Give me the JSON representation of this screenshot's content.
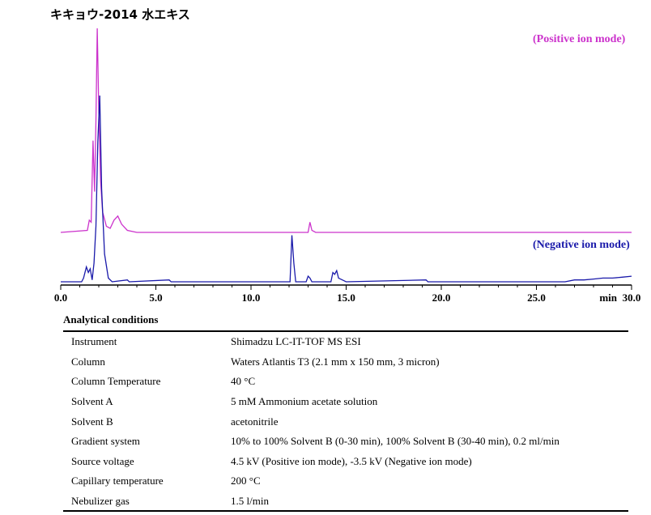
{
  "title": "キキョウ-2014 水エキス",
  "chart_data": {
    "type": "line",
    "x_range": [
      0.0,
      30.0
    ],
    "x_ticks": [
      "0.0",
      "5.0",
      "10.0",
      "15.0",
      "20.0",
      "25.0",
      "30.0"
    ],
    "x_unit_label": "min",
    "series": [
      {
        "name": "(Positive ion mode)",
        "color": "#cc33cc",
        "points": [
          [
            0.0,
            0.0
          ],
          [
            1.4,
            0.01
          ],
          [
            1.5,
            0.06
          ],
          [
            1.6,
            0.05
          ],
          [
            1.7,
            0.45
          ],
          [
            1.78,
            0.2
          ],
          [
            1.85,
            0.55
          ],
          [
            1.92,
            1.0
          ],
          [
            2.0,
            0.6
          ],
          [
            2.1,
            0.25
          ],
          [
            2.2,
            0.1
          ],
          [
            2.4,
            0.03
          ],
          [
            2.6,
            0.02
          ],
          [
            2.8,
            0.06
          ],
          [
            3.0,
            0.08
          ],
          [
            3.2,
            0.04
          ],
          [
            3.5,
            0.01
          ],
          [
            4.0,
            0.0
          ],
          [
            13.0,
            0.0
          ],
          [
            13.1,
            0.05
          ],
          [
            13.2,
            0.01
          ],
          [
            13.4,
            0.0
          ],
          [
            30.0,
            0.0
          ]
        ]
      },
      {
        "name": "(Negative ion mode)",
        "color": "#1a1aaa",
        "points": [
          [
            0.0,
            0.0
          ],
          [
            1.1,
            0.0
          ],
          [
            1.2,
            0.02
          ],
          [
            1.35,
            0.08
          ],
          [
            1.45,
            0.05
          ],
          [
            1.55,
            0.07
          ],
          [
            1.65,
            0.01
          ],
          [
            1.75,
            0.1
          ],
          [
            1.85,
            0.3
          ],
          [
            1.95,
            0.75
          ],
          [
            2.05,
            1.0
          ],
          [
            2.15,
            0.5
          ],
          [
            2.3,
            0.15
          ],
          [
            2.5,
            0.02
          ],
          [
            2.7,
            0.0
          ],
          [
            3.5,
            0.01
          ],
          [
            3.6,
            0.0
          ],
          [
            5.7,
            0.01
          ],
          [
            5.8,
            0.0
          ],
          [
            12.05,
            0.0
          ],
          [
            12.15,
            0.25
          ],
          [
            12.25,
            0.1
          ],
          [
            12.35,
            0.0
          ],
          [
            12.9,
            0.0
          ],
          [
            13.0,
            0.03
          ],
          [
            13.1,
            0.02
          ],
          [
            13.2,
            0.0
          ],
          [
            14.2,
            0.0
          ],
          [
            14.3,
            0.05
          ],
          [
            14.4,
            0.04
          ],
          [
            14.5,
            0.06
          ],
          [
            14.6,
            0.02
          ],
          [
            14.8,
            0.01
          ],
          [
            15.0,
            0.0
          ],
          [
            19.2,
            0.01
          ],
          [
            19.3,
            0.0
          ],
          [
            26.5,
            0.0
          ],
          [
            27.0,
            0.01
          ],
          [
            27.5,
            0.01
          ],
          [
            28.0,
            0.015
          ],
          [
            28.5,
            0.02
          ],
          [
            29.0,
            0.02
          ],
          [
            29.5,
            0.025
          ],
          [
            30.0,
            0.03
          ]
        ]
      }
    ]
  },
  "conditions": {
    "heading": "Analytical conditions",
    "rows": [
      {
        "key": "Instrument",
        "value": "Shimadzu LC-IT-TOF MS ESI"
      },
      {
        "key": "Column",
        "value": "Waters Atlantis T3 (2.1 mm x 150 mm, 3 micron)"
      },
      {
        "key": "Column Temperature",
        "value": "40 °C"
      },
      {
        "key": "Solvent A",
        "value": "5 mM Ammonium acetate solution"
      },
      {
        "key": "Solvent B",
        "value": "acetonitrile"
      },
      {
        "key": "Gradient system",
        "value": "10% to 100% Solvent B (0-30 min), 100% Solvent B (30-40 min), 0.2 ml/min"
      },
      {
        "key": "Source voltage",
        "value": "4.5 kV (Positive ion mode), -3.5 kV (Negative ion mode)"
      },
      {
        "key": "Capillary temperature",
        "value": "200 °C"
      },
      {
        "key": "Nebulizer gas",
        "value": "1.5 l/min"
      }
    ]
  }
}
